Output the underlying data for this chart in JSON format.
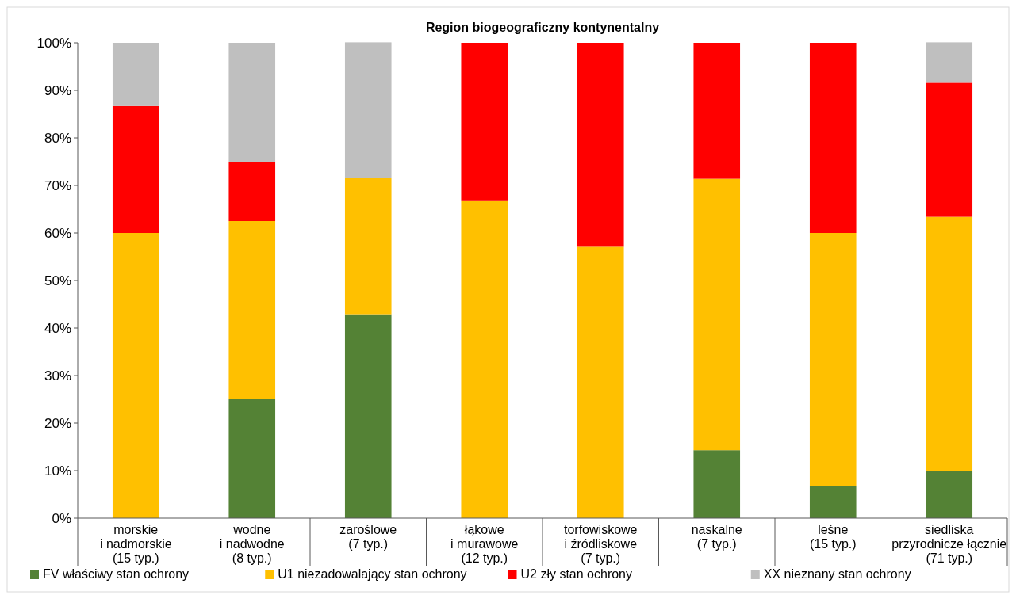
{
  "chart_data": {
    "type": "bar",
    "stacked": true,
    "title": "Region biogeograficzny kontynentalny",
    "categories": [
      "morskie\ni nadmorskie\n(15 typ.)",
      "wodne\ni nadwodne\n(8 typ.)",
      "zaroślowe\n(7 typ.)",
      "łąkowe\ni murawowe\n(12 typ.)",
      "torfowiskowe\ni źródliskowe\n(7 typ.)",
      "naskalne\n(7 typ.)",
      "leśne\n(15 typ.)",
      "siedliska\nprzyrodnicze łącznie\n(71 typ.)"
    ],
    "series": [
      {
        "name": "FV właściwy stan ochrony",
        "color": "#548235",
        "values": [
          0,
          25,
          42.9,
          0,
          0,
          14.3,
          6.7,
          9.9
        ]
      },
      {
        "name": "U1 niezadowalający stan ochrony",
        "color": "#ffc000",
        "values": [
          60,
          37.5,
          28.6,
          66.7,
          57.1,
          57.1,
          53.3,
          53.5
        ]
      },
      {
        "name": "U2 zły stan ochrony",
        "color": "#ff0000",
        "values": [
          26.7,
          12.5,
          0,
          33.3,
          42.9,
          28.6,
          40,
          28.2
        ]
      },
      {
        "name": "XX nieznany stan ochrony",
        "color": "#bfbfbf",
        "values": [
          13.3,
          25,
          28.6,
          0,
          0,
          0,
          0,
          8.5
        ]
      }
    ],
    "ylim": [
      0,
      100
    ],
    "yticks": [
      {
        "value": 0,
        "label": "0%"
      },
      {
        "value": 10,
        "label": "10%"
      },
      {
        "value": 20,
        "label": "20%"
      },
      {
        "value": 30,
        "label": "30%"
      },
      {
        "value": 40,
        "label": "40%"
      },
      {
        "value": 50,
        "label": "50%"
      },
      {
        "value": 60,
        "label": "60%"
      },
      {
        "value": 70,
        "label": "70%"
      },
      {
        "value": 80,
        "label": "80%"
      },
      {
        "value": 90,
        "label": "90%"
      },
      {
        "value": 100,
        "label": "100%"
      }
    ],
    "grid": false,
    "legend": "bottom"
  }
}
